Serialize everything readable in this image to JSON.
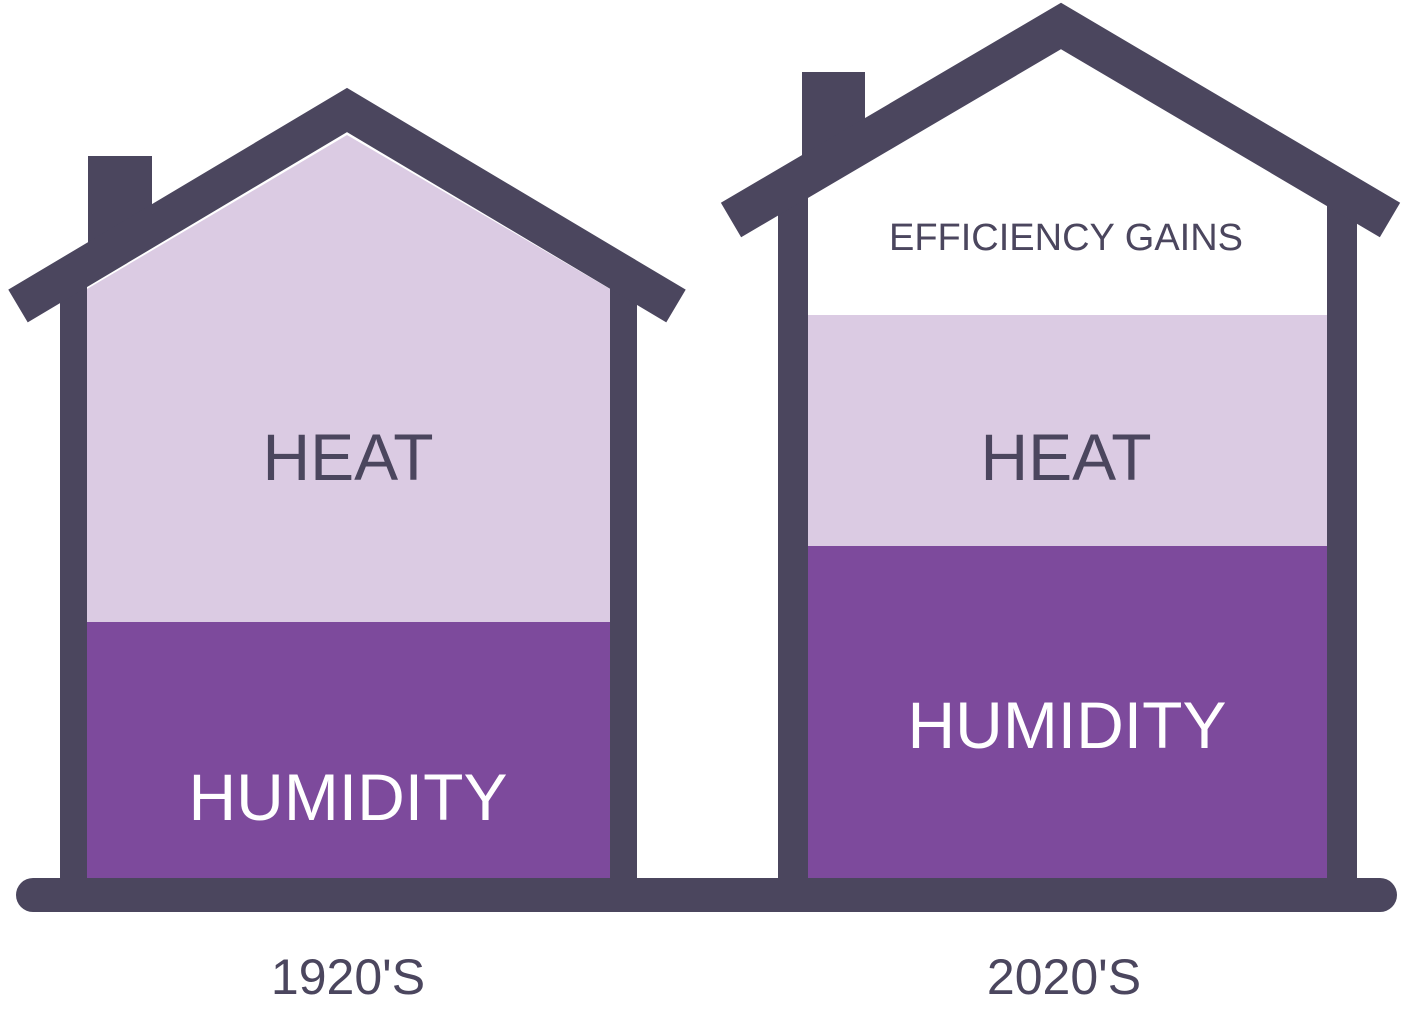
{
  "colors": {
    "outline": "#4b465e",
    "heat": "#dbcbe3",
    "humidity": "#7d4a9c",
    "efficiency": "#ffffff",
    "dark_text": "#4b465e",
    "light_text": "#ffffff"
  },
  "houses": [
    {
      "era_label": "1920'S",
      "segments": {
        "heat": "HEAT",
        "humidity": "HUMIDITY"
      }
    },
    {
      "era_label": "2020'S",
      "segments": {
        "efficiency": "EFFICIENCY GAINS",
        "heat": "HEAT",
        "humidity": "HUMIDITY"
      }
    }
  ]
}
